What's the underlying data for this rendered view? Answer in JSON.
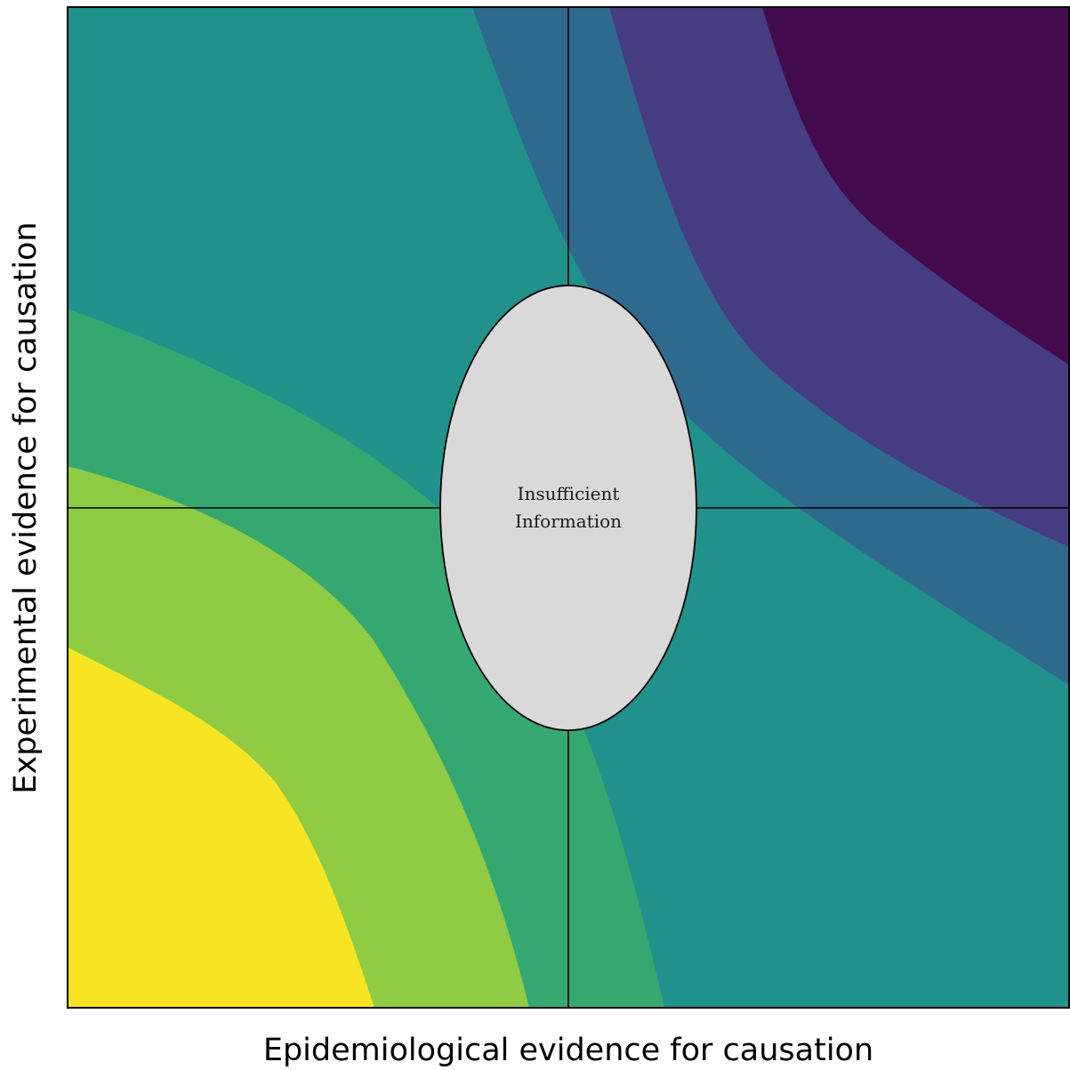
{
  "x_axis_label": "Epidemiological evidence for causation",
  "y_axis_label": "Experimental evidence for causation",
  "center_label": {
    "line1": "Insufficient",
    "line2": "Information"
  },
  "colors": {
    "band_1": "#f7e523",
    "band_2": "#8fcb43",
    "band_3": "#35a872",
    "band_4": "#20918b",
    "band_5": "#2e6a8d",
    "band_6": "#453c81",
    "band_7": "#430a4e",
    "center_fill": "#d9d9d9",
    "lines": "#000000"
  }
}
